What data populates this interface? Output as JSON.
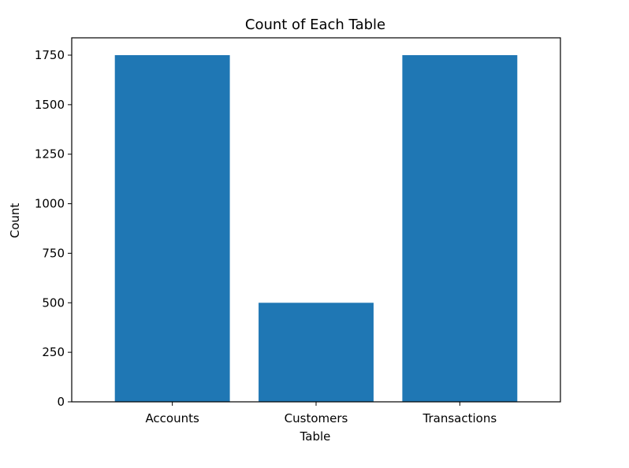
{
  "chart_data": {
    "type": "bar",
    "title": "Count of Each Table",
    "xlabel": "Table",
    "ylabel": "Count",
    "categories": [
      "Accounts",
      "Customers",
      "Transactions"
    ],
    "values": [
      1750,
      500,
      1750
    ],
    "ylim": [
      0,
      1837.5
    ],
    "yticks": [
      0,
      250,
      500,
      750,
      1000,
      1250,
      1500,
      1750
    ],
    "ytick_labels": [
      "0",
      "250",
      "500",
      "750",
      "1000",
      "1250",
      "1500",
      "1750"
    ],
    "grid": false,
    "legend": "none",
    "bar_color": "#1f77b4"
  }
}
